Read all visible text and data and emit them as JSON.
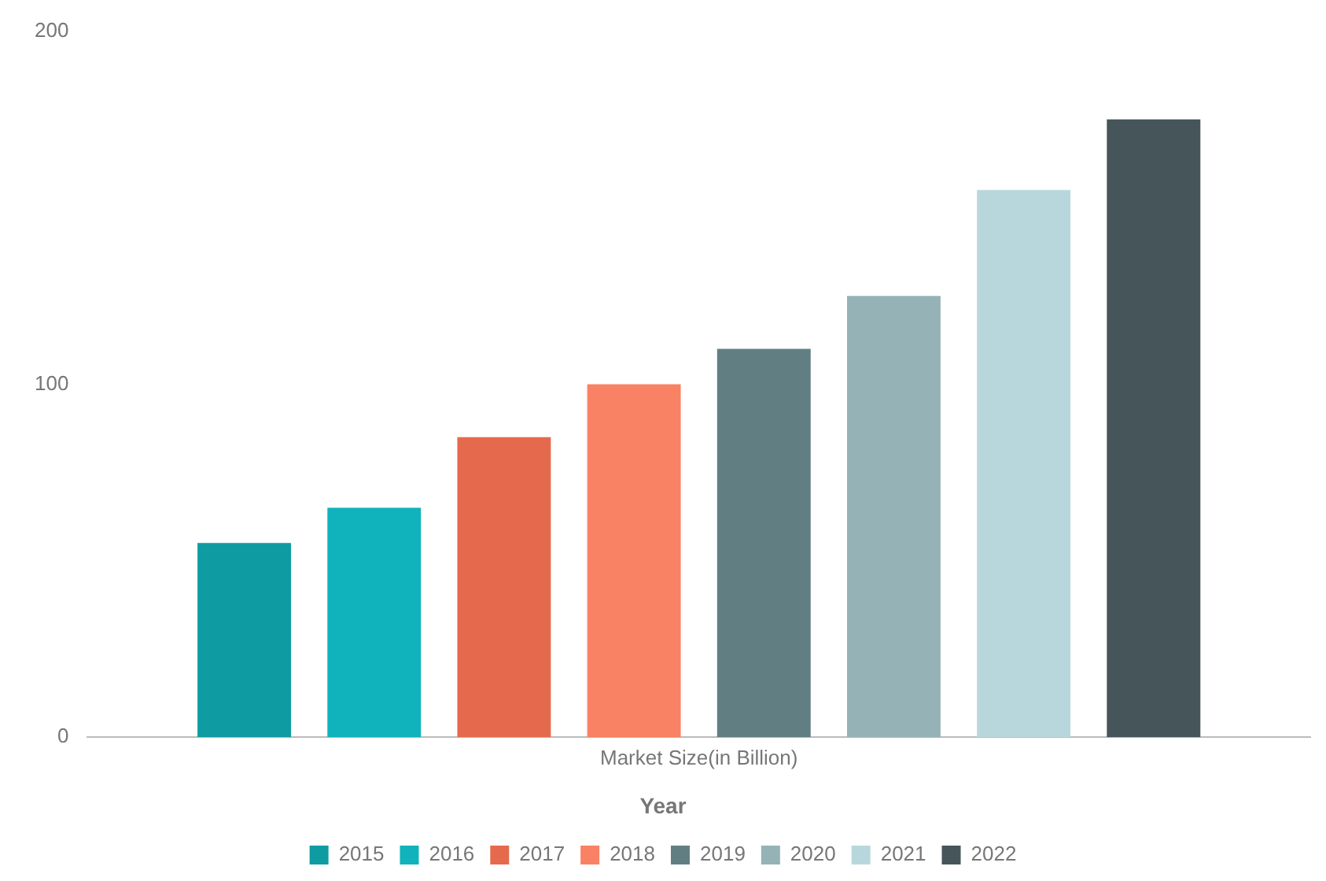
{
  "chart_data": {
    "type": "bar",
    "categories": [
      "Market Size(in Billion)"
    ],
    "legend_title": "Year",
    "series": [
      {
        "name": "2015",
        "color": "#0f9ba2",
        "values": [
          55
        ]
      },
      {
        "name": "2016",
        "color": "#10b3bb",
        "values": [
          65
        ]
      },
      {
        "name": "2017",
        "color": "#e56a4d",
        "values": [
          85
        ]
      },
      {
        "name": "2018",
        "color": "#f98164",
        "values": [
          100
        ]
      },
      {
        "name": "2019",
        "color": "#617f83",
        "values": [
          110
        ]
      },
      {
        "name": "2020",
        "color": "#95b2b7",
        "values": [
          125
        ]
      },
      {
        "name": "2021",
        "color": "#b8d7dc",
        "values": [
          155
        ]
      },
      {
        "name": "2022",
        "color": "#46555a",
        "values": [
          175
        ]
      }
    ],
    "ylim": [
      0,
      200
    ],
    "yticks": [
      0,
      100,
      200
    ],
    "grid": false,
    "legend": "bottom"
  }
}
